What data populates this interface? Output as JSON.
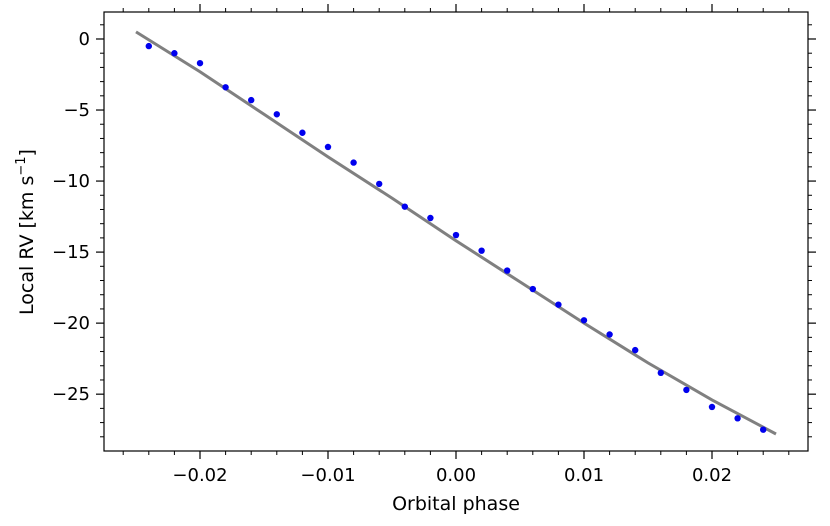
{
  "chart_data": {
    "type": "scatter",
    "xlabel": "Orbital phase",
    "ylabel": "Local RV [km s",
    "ylabel_sup": "−1",
    "ylabel_suffix": "]",
    "xlim": [
      -0.0275,
      0.0275
    ],
    "ylim": [
      -29.0,
      1.9
    ],
    "x_ticks": [
      -0.02,
      -0.01,
      0.0,
      0.01,
      0.02
    ],
    "x_tick_labels": [
      "−0.02",
      "−0.01",
      "0.00",
      "0.01",
      "0.02"
    ],
    "y_ticks": [
      0,
      -5,
      -10,
      -15,
      -20,
      -25
    ],
    "y_tick_labels": [
      "0",
      "−5",
      "−10",
      "−15",
      "−20",
      "−25"
    ],
    "grid": false,
    "series": [
      {
        "kind": "points",
        "color": "#0000ee",
        "x": [
          -0.024,
          -0.022,
          -0.02,
          -0.018,
          -0.016,
          -0.014,
          -0.012,
          -0.01,
          -0.008,
          -0.006,
          -0.004,
          -0.002,
          0.0,
          0.002,
          0.004,
          0.006,
          0.008,
          0.01,
          0.012,
          0.014,
          0.016,
          0.018,
          0.02,
          0.022,
          0.024
        ],
        "y": [
          -0.5,
          -1.0,
          -1.7,
          -3.4,
          -4.3,
          -5.3,
          -6.6,
          -7.6,
          -8.7,
          -10.2,
          -11.8,
          -12.6,
          -13.8,
          -14.9,
          -16.3,
          -17.6,
          -18.7,
          -19.8,
          -20.8,
          -21.9,
          -23.5,
          -24.7,
          -25.9,
          -26.7,
          -27.5
        ]
      },
      {
        "kind": "model-line",
        "color": "#808080",
        "x": [
          -0.025,
          -0.02,
          -0.015,
          -0.01,
          -0.005,
          0.0,
          0.005,
          0.01,
          0.015,
          0.02,
          0.025
        ],
        "y": [
          0.5,
          -2.3,
          -5.3,
          -8.3,
          -11.2,
          -14.2,
          -17.1,
          -20.0,
          -22.8,
          -25.4,
          -27.8
        ]
      }
    ]
  }
}
